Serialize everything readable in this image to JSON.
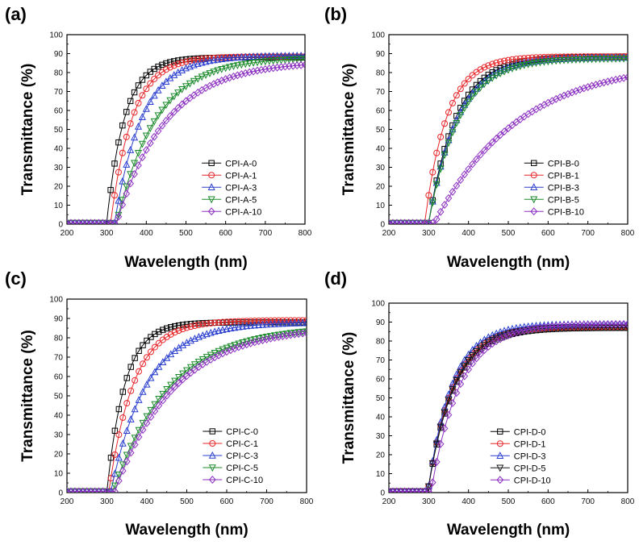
{
  "chart_data": [
    {
      "type": "line",
      "panel_label": "(a)",
      "xlabel": "Wavelength (nm)",
      "ylabel": "Transmittance (%)",
      "xlim": [
        200,
        800
      ],
      "ylim": [
        0,
        100
      ],
      "x_ticks": [
        "200",
        "300",
        "400",
        "500",
        "600",
        "700",
        "800"
      ],
      "y_ticks": [
        "0",
        "10",
        "20",
        "30",
        "40",
        "50",
        "60",
        "70",
        "80",
        "90",
        "100"
      ],
      "legend": "lower-right",
      "series": [
        {
          "name": "CPI-A-0",
          "marker": "square",
          "color": "#000000",
          "onset": 300,
          "plateau": 88,
          "scale": 45
        },
        {
          "name": "CPI-A-1",
          "marker": "circle",
          "color": "#e8262a",
          "onset": 310,
          "plateau": 88.5,
          "scale": 55
        },
        {
          "name": "CPI-A-3",
          "marker": "triangle-up",
          "color": "#2a3fcf",
          "onset": 320,
          "plateau": 89,
          "scale": 70
        },
        {
          "name": "CPI-A-5",
          "marker": "triangle-down",
          "color": "#1a8a2a",
          "onset": 325,
          "plateau": 88,
          "scale": 100
        },
        {
          "name": "CPI-A-10",
          "marker": "diamond",
          "color": "#8b2fc0",
          "onset": 325,
          "plateau": 86,
          "scale": 125
        }
      ]
    },
    {
      "type": "line",
      "panel_label": "(b)",
      "xlabel": "Wavelength (nm)",
      "ylabel": "Transmittance (%)",
      "xlim": [
        200,
        800
      ],
      "ylim": [
        0,
        100
      ],
      "x_ticks": [
        "200",
        "300",
        "400",
        "500",
        "600",
        "700",
        "800"
      ],
      "y_ticks": [
        "0",
        "10",
        "20",
        "30",
        "40",
        "50",
        "60",
        "70",
        "80",
        "90",
        "100"
      ],
      "legend": "lower-right",
      "series": [
        {
          "name": "CPI-B-0",
          "marker": "square",
          "color": "#000000",
          "onset": 300,
          "plateau": 88.5,
          "scale": 68
        },
        {
          "name": "CPI-B-1",
          "marker": "circle",
          "color": "#e8262a",
          "onset": 290,
          "plateau": 88.5,
          "scale": 55
        },
        {
          "name": "CPI-B-3",
          "marker": "triangle-up",
          "color": "#2a3fcf",
          "onset": 300,
          "plateau": 88,
          "scale": 72
        },
        {
          "name": "CPI-B-5",
          "marker": "triangle-down",
          "color": "#1a8a2a",
          "onset": 300,
          "plateau": 87.5,
          "scale": 75
        },
        {
          "name": "CPI-B-10",
          "marker": "diamond",
          "color": "#8b2fc0",
          "onset": 315,
          "plateau": 86,
          "scale": 210
        }
      ]
    },
    {
      "type": "line",
      "panel_label": "(c)",
      "xlabel": "Wavelength (nm)",
      "ylabel": "Transmittance (%)",
      "xlim": [
        200,
        800
      ],
      "ylim": [
        0,
        100
      ],
      "x_ticks": [
        "200",
        "300",
        "400",
        "500",
        "600",
        "700",
        "800"
      ],
      "y_ticks": [
        "0",
        "10",
        "20",
        "30",
        "40",
        "50",
        "60",
        "70",
        "80",
        "90",
        "100"
      ],
      "legend": "lower-right",
      "series": [
        {
          "name": "CPI-C-0",
          "marker": "square",
          "color": "#000000",
          "onset": 300,
          "plateau": 88,
          "scale": 45
        },
        {
          "name": "CPI-C-1",
          "marker": "circle",
          "color": "#e8262a",
          "onset": 305,
          "plateau": 89,
          "scale": 62
        },
        {
          "name": "CPI-C-3",
          "marker": "triangle-up",
          "color": "#2a3fcf",
          "onset": 310,
          "plateau": 88,
          "scale": 90
        },
        {
          "name": "CPI-C-5",
          "marker": "triangle-down",
          "color": "#1a8a2a",
          "onset": 315,
          "plateau": 86,
          "scale": 140
        },
        {
          "name": "CPI-C-10",
          "marker": "diamond",
          "color": "#8b2fc0",
          "onset": 320,
          "plateau": 86,
          "scale": 150
        }
      ]
    },
    {
      "type": "line",
      "panel_label": "(d)",
      "xlabel": "Wavelength (nm)",
      "ylabel": "Transmittance (%)",
      "xlim": [
        200,
        800
      ],
      "ylim": [
        0,
        100
      ],
      "x_ticks": [
        "200",
        "300",
        "400",
        "500",
        "600",
        "700",
        "800"
      ],
      "y_ticks": [
        "0",
        "10",
        "20",
        "30",
        "40",
        "50",
        "60",
        "70",
        "80",
        "90",
        "100"
      ],
      "legend": "lower-left",
      "series": [
        {
          "name": "CPI-D-0",
          "marker": "square",
          "color": "#000000",
          "onset": 298,
          "plateau": 87,
          "scale": 65
        },
        {
          "name": "CPI-D-1",
          "marker": "circle",
          "color": "#e8262a",
          "onset": 298,
          "plateau": 87.5,
          "scale": 62
        },
        {
          "name": "CPI-D-3",
          "marker": "triangle-up",
          "color": "#2a3fcf",
          "onset": 298,
          "plateau": 89,
          "scale": 60
        },
        {
          "name": "CPI-D-5",
          "marker": "triangle-down",
          "color": "#1a1a1a",
          "onset": 298,
          "plateau": 87.5,
          "scale": 64
        },
        {
          "name": "CPI-D-10",
          "marker": "diamond",
          "color": "#8b2fc0",
          "onset": 306,
          "plateau": 89,
          "scale": 72
        }
      ]
    }
  ]
}
